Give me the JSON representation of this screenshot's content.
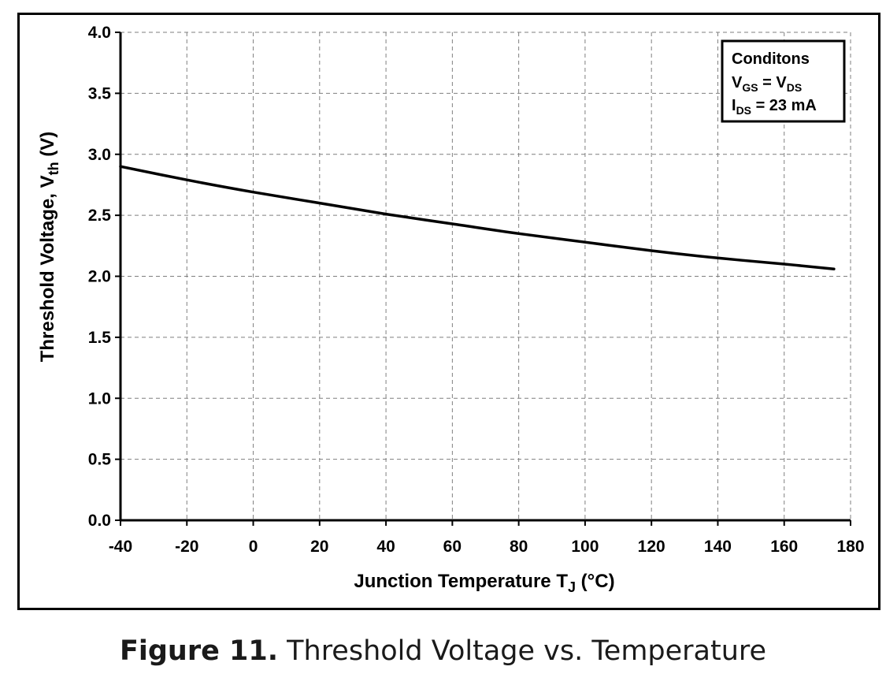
{
  "chart_data": {
    "type": "line",
    "xlabel": "Junction Temperature T",
    "xlabel_sub": "J",
    "xlabel_unit": " (°C)",
    "ylabel": "Threshold Voltage, V",
    "ylabel_sub": "th",
    "ylabel_unit": " (V)",
    "xlim": [
      -40,
      180
    ],
    "ylim": [
      0.0,
      4.0
    ],
    "x_ticks": [
      "-40",
      "-20",
      "0",
      "20",
      "40",
      "60",
      "80",
      "100",
      "120",
      "140",
      "160",
      "180"
    ],
    "y_ticks": [
      "0.0",
      "0.5",
      "1.0",
      "1.5",
      "2.0",
      "2.5",
      "3.0",
      "3.5",
      "4.0"
    ],
    "grid": true,
    "legend_position": "top-right",
    "series": [
      {
        "x": [
          -40,
          -20,
          0,
          20,
          40,
          60,
          80,
          100,
          120,
          140,
          160,
          175
        ],
        "values": [
          2.9,
          2.79,
          2.69,
          2.6,
          2.51,
          2.43,
          2.35,
          2.28,
          2.21,
          2.15,
          2.1,
          2.06
        ]
      }
    ],
    "conditions": {
      "title": "Conditons",
      "line1": {
        "main": "V",
        "sub1": "GS",
        "mid": " = V",
        "sub2": "DS"
      },
      "line2": {
        "main": "I",
        "sub1": "DS",
        "rest": " = 23 mA"
      }
    }
  },
  "caption": {
    "label": "Figure 11.",
    "text": " Threshold Voltage vs. Temperature"
  },
  "colors": {
    "line": "#000000",
    "grid": "#7f7f7f",
    "frame": "#000000",
    "background": "#ffffff"
  }
}
